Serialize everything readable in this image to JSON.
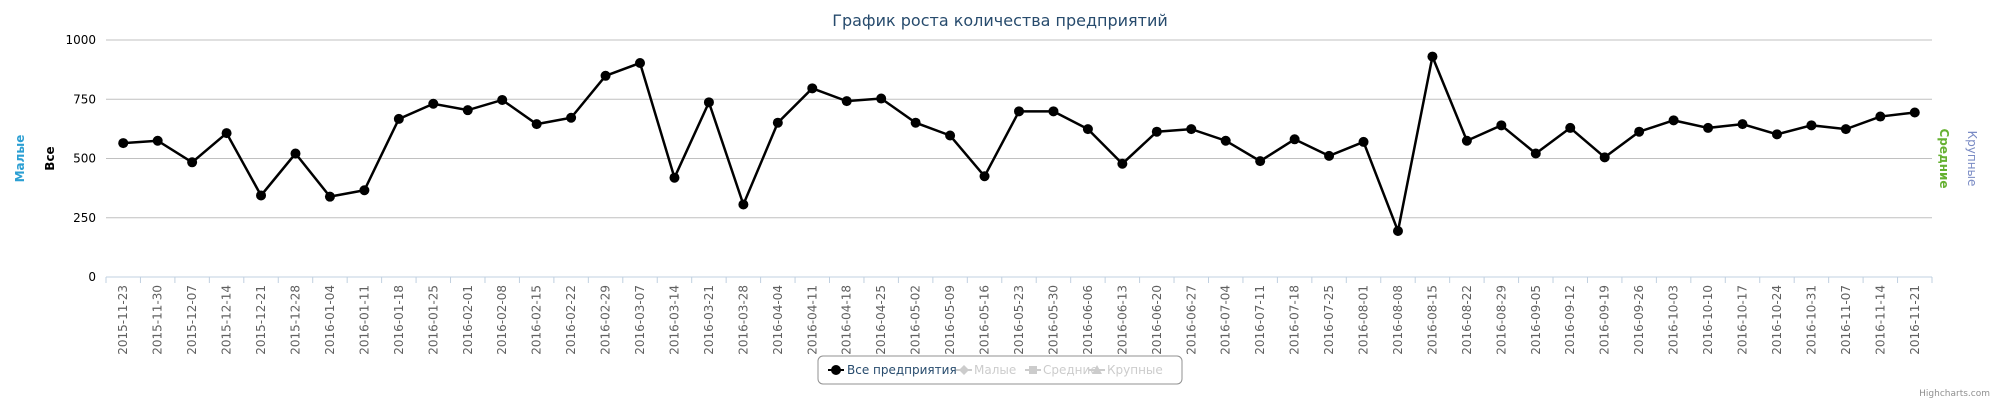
{
  "chart_data": {
    "type": "line",
    "title": "График роста количества предприятий",
    "categories": [
      "2015-11-23",
      "2015-11-30",
      "2015-12-07",
      "2015-12-14",
      "2015-12-21",
      "2015-12-28",
      "2016-01-04",
      "2016-01-11",
      "2016-01-18",
      "2016-01-25",
      "2016-02-01",
      "2016-02-08",
      "2016-02-15",
      "2016-02-22",
      "2016-02-29",
      "2016-03-07",
      "2016-03-14",
      "2016-03-21",
      "2016-03-28",
      "2016-04-04",
      "2016-04-11",
      "2016-04-18",
      "2016-04-25",
      "2016-05-02",
      "2016-05-09",
      "2016-05-16",
      "2016-05-23",
      "2016-05-30",
      "2016-06-06",
      "2016-06-13",
      "2016-06-20",
      "2016-06-27",
      "2016-07-04",
      "2016-07-11",
      "2016-07-18",
      "2016-07-25",
      "2016-08-01",
      "2016-08-08",
      "2016-08-15",
      "2016-08-22",
      "2016-08-29",
      "2016-09-05",
      "2016-09-12",
      "2016-09-19",
      "2016-09-26",
      "2016-10-03",
      "2016-10-10",
      "2016-10-17",
      "2016-10-24",
      "2016-10-31",
      "2016-11-07",
      "2016-11-14",
      "2016-11-21"
    ],
    "series": [
      {
        "name": "Все предприятия",
        "color": "#000000",
        "values": [
          565,
          575,
          484,
          607,
          344,
          521,
          339,
          366,
          667,
          731,
          704,
          747,
          645,
          672,
          849,
          903,
          419,
          737,
          306,
          651,
          796,
          742,
          753,
          651,
          597,
          425,
          699,
          699,
          624,
          478,
          613,
          624,
          575,
          489,
          581,
          511,
          570,
          194,
          930,
          575,
          640,
          521,
          629,
          505,
          613,
          661,
          629,
          645,
          602,
          640,
          624,
          677,
          694
        ]
      }
    ],
    "hidden_series": [
      {
        "name": "Малые",
        "symbol": "diamond"
      },
      {
        "name": "Средние",
        "symbol": "square"
      },
      {
        "name": "Крупные",
        "symbol": "triangle"
      }
    ],
    "y_axis_titles_left": [
      {
        "text": "Малые",
        "color": "#2b9fd3"
      },
      {
        "text": "Все",
        "color": "#000000"
      }
    ],
    "y_axis_titles_right": [
      {
        "text": "Средние",
        "color": "#66b132"
      },
      {
        "text": "Крупные",
        "color": "#7a8bc4"
      }
    ],
    "ylim": [
      0,
      1000
    ],
    "yticks": [
      0,
      250,
      500,
      750,
      1000
    ],
    "grid": true,
    "legend_position": "bottom",
    "credits": "Highcharts.com"
  }
}
